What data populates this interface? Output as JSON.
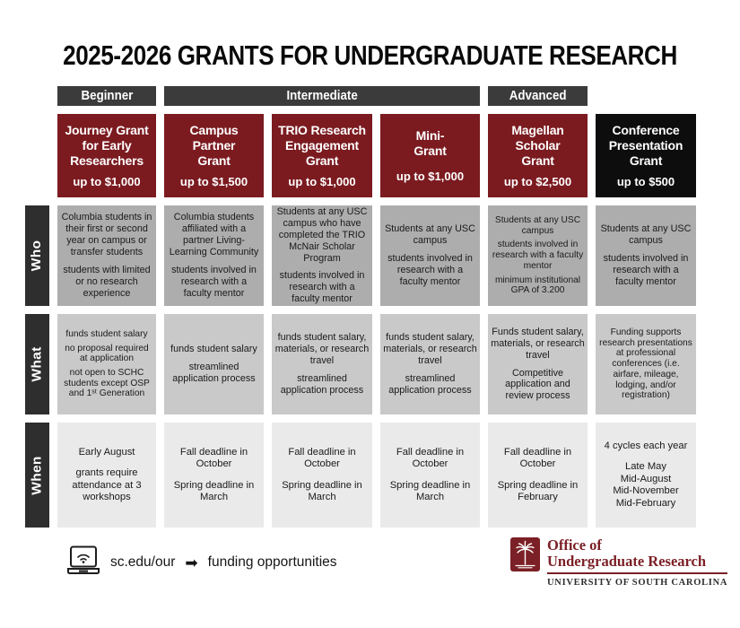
{
  "title": "2025-2026 GRANTS FOR UNDERGRADUATE RESEARCH",
  "colors": {
    "garnet": "#7b1b20",
    "header_black": "#0d0d0d",
    "category_bar": "#3b3b3b",
    "row_label": "#2e2e2e",
    "who_cell": "#adadad",
    "what_cell": "#c9c9c9",
    "when_cell": "#eaeaea",
    "logo_maroon": "#7b2026",
    "text_dark": "#1a1a1a"
  },
  "categories": [
    {
      "label": "Beginner"
    },
    {
      "label": "Intermediate"
    },
    {
      "label": "Advanced"
    }
  ],
  "row_labels": [
    "Who",
    "What",
    "When"
  ],
  "grants": [
    {
      "name": "Journey Grant\nfor Early\nResearchers",
      "amount": "up to $1,000",
      "who": [
        "Columbia students in their first or second year on campus or transfer students",
        "students with limited or no research experience"
      ],
      "what": [
        "funds student salary",
        "no proposal required at application",
        "not open to SCHC students except OSP and 1ˢᵗ Generation"
      ],
      "when": [
        "Early August",
        "grants require attendance at 3 workshops"
      ]
    },
    {
      "name": "Campus\nPartner\nGrant",
      "amount": "up to $1,500",
      "who": [
        "Columbia students affiliated with a partner Living-Learning Community",
        "students involved in research with a faculty mentor"
      ],
      "what": [
        "funds student salary",
        "streamlined application process"
      ],
      "when": [
        "Fall deadline in October",
        "Spring deadline in March"
      ]
    },
    {
      "name": "TRIO Research\nEngagement\nGrant",
      "amount": "up to $1,000",
      "who": [
        "Students at any USC campus who have completed the TRIO McNair Scholar Program",
        "students involved in research with a faculty mentor"
      ],
      "what": [
        "funds student salary, materials, or research travel",
        "streamlined application process"
      ],
      "when": [
        "Fall deadline in October",
        "Spring deadline in March"
      ]
    },
    {
      "name": "Mini-\nGrant",
      "amount": "up to $1,000",
      "who": [
        "Students at any USC campus",
        "students involved in research with a faculty mentor"
      ],
      "what": [
        "funds student salary, materials, or research travel",
        "streamlined application process"
      ],
      "when": [
        "Fall deadline in October",
        "Spring deadline in March"
      ]
    },
    {
      "name": "Magellan\nScholar\nGrant",
      "amount": "up to $2,500",
      "who": [
        "Students at any USC campus",
        "students involved in research with a faculty mentor",
        "minimum institutional GPA of 3.200"
      ],
      "what": [
        "Funds student salary, materials, or research travel",
        "Competitive application and review process"
      ],
      "when": [
        "Fall deadline in October",
        "Spring deadline in February"
      ]
    },
    {
      "name": "Conference\nPresentation\nGrant",
      "amount": "up to $500",
      "who": [
        "Students at any USC campus",
        "students involved in research with a faculty mentor"
      ],
      "what": [
        "Funding supports research presentations at professional conferences (i.e. airfare, mileage, lodging, and/or registration)"
      ],
      "when": [
        "4 cycles each year",
        "Late May\nMid-August\nMid-November\nMid-February"
      ]
    }
  ],
  "footer": {
    "url": "sc.edu/our",
    "arrow": "➡",
    "link_text": "funding opportunities",
    "logo": {
      "line1": "Office of",
      "line2": "Undergraduate Research",
      "line3": "UNIVERSITY OF SOUTH CAROLINA"
    }
  }
}
